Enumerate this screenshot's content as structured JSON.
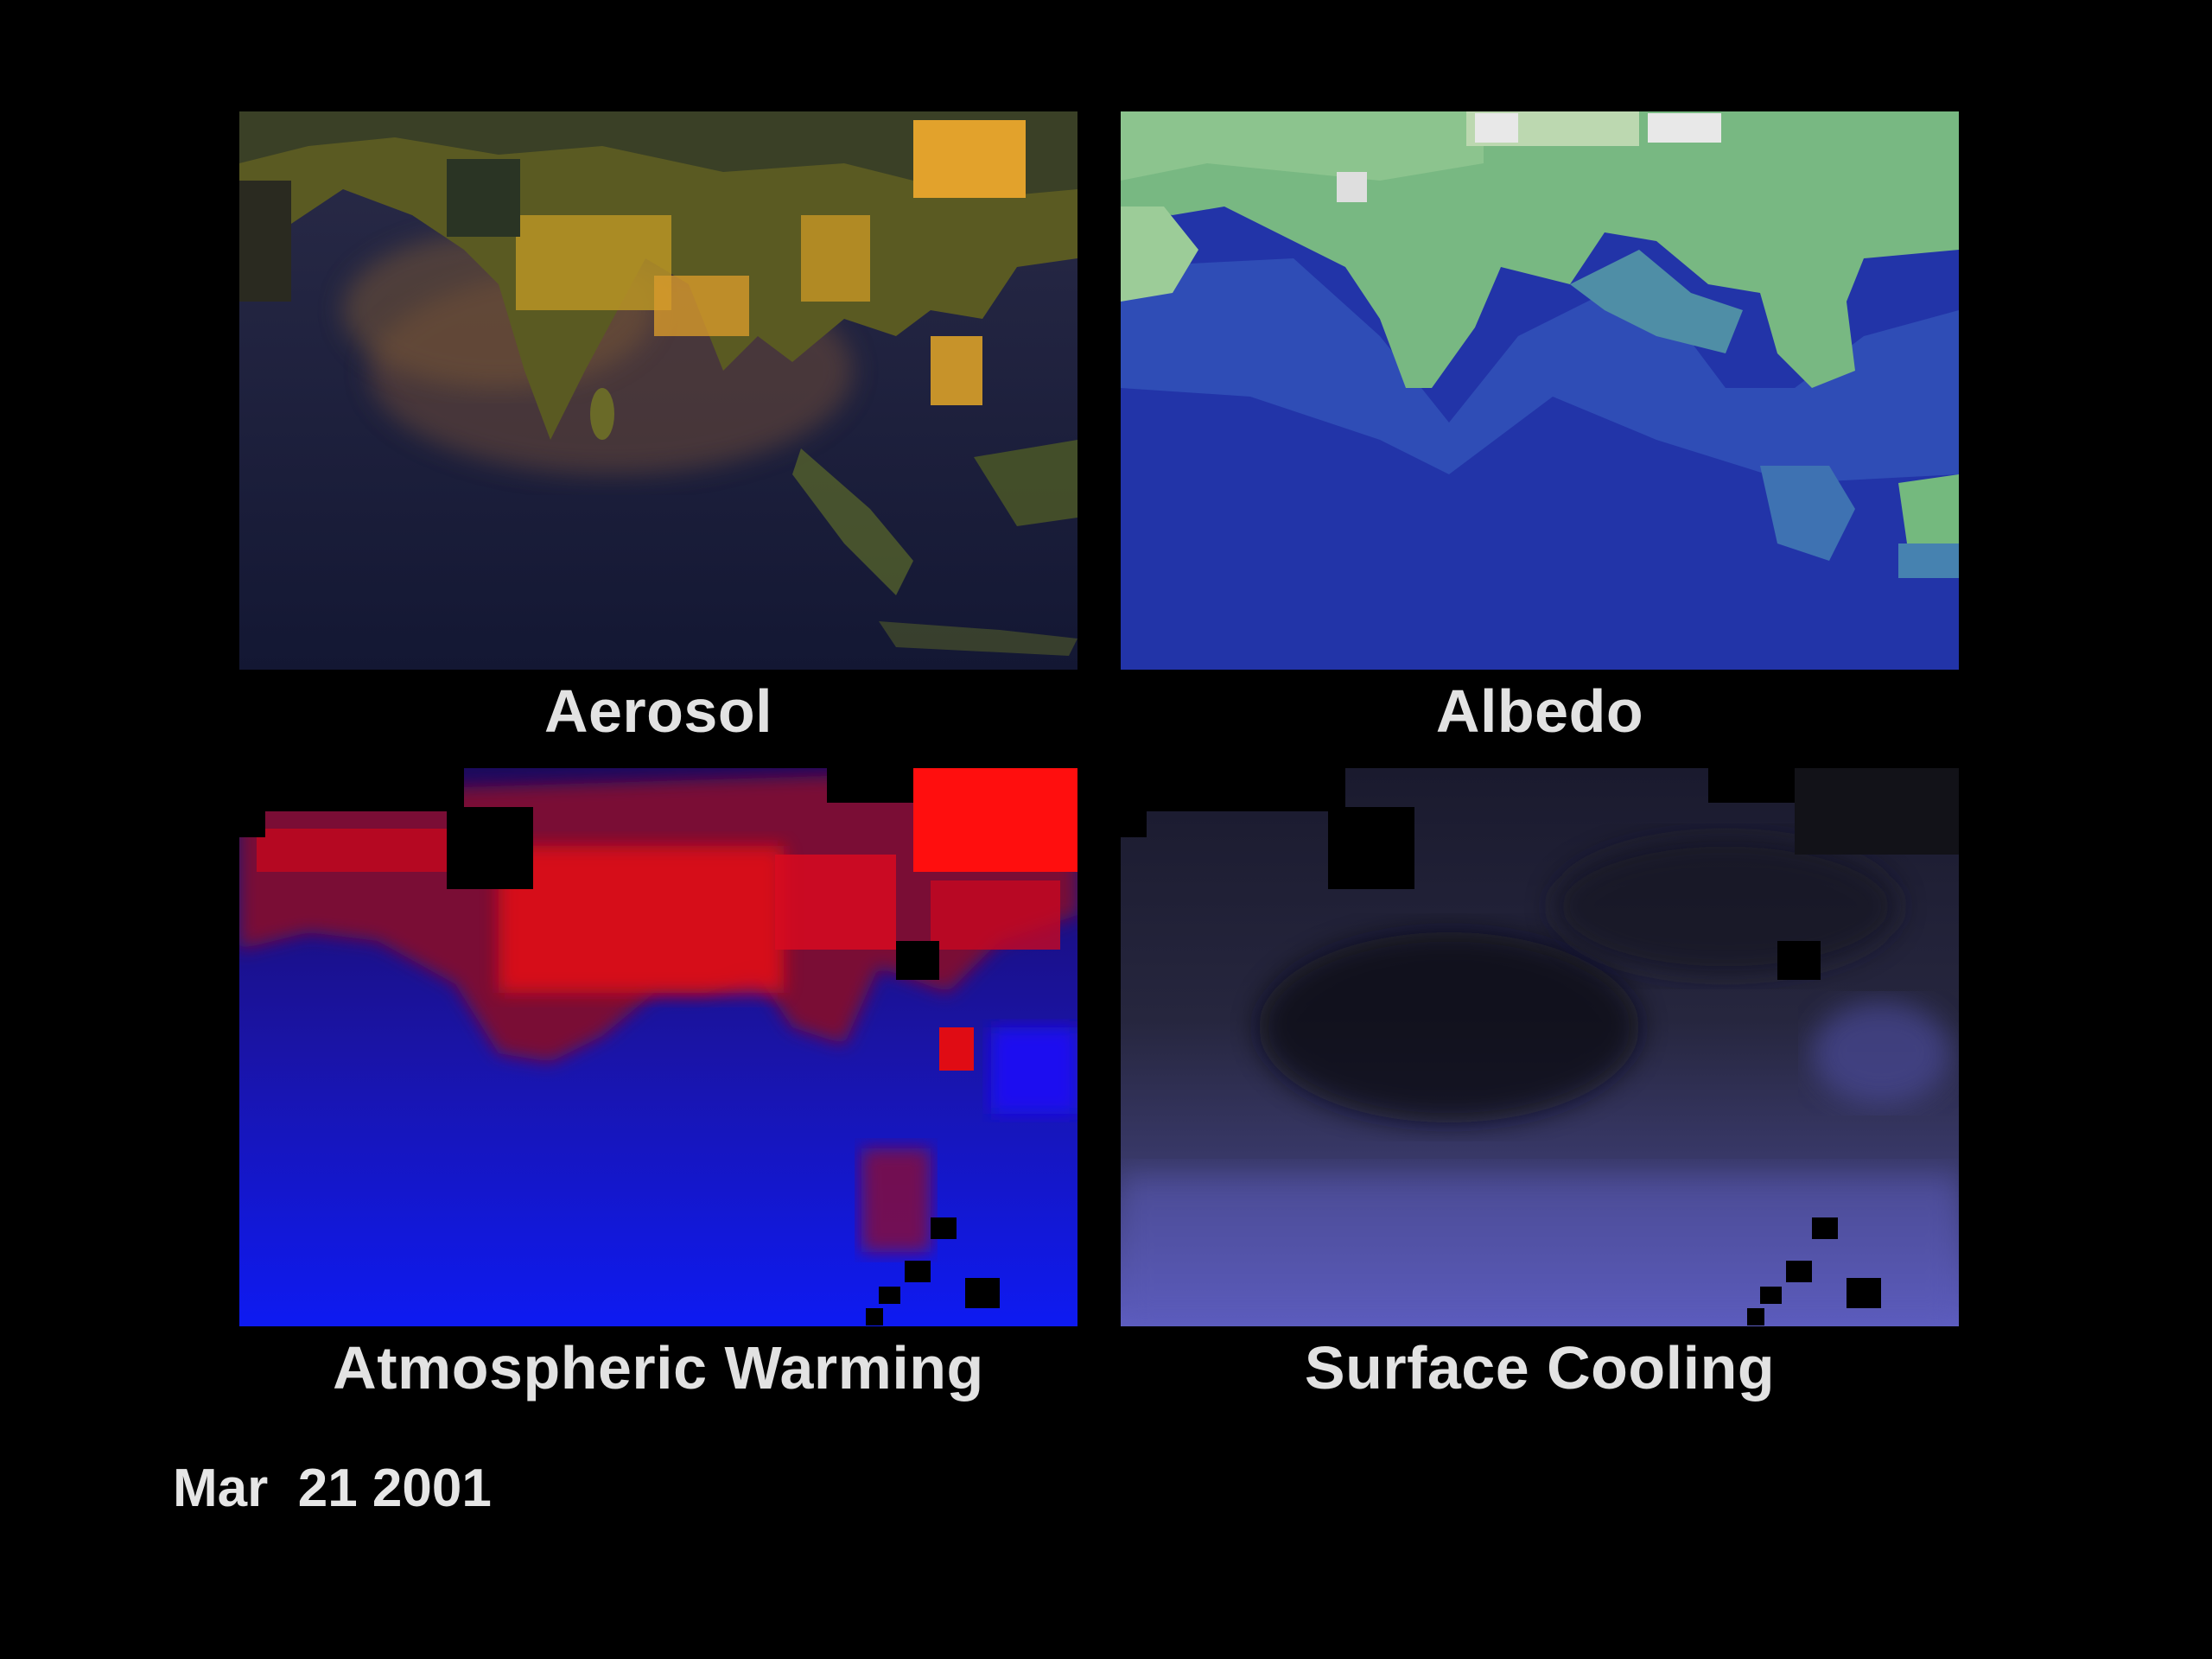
{
  "panels": [
    {
      "key": "aerosol",
      "caption": "Aerosol",
      "palette": [
        "#161c3c",
        "#3a3550",
        "#a07a2c",
        "#e0a12a"
      ]
    },
    {
      "key": "albedo",
      "caption": "Albedo",
      "palette": [
        "#2233aa",
        "#3a63b8",
        "#7fbf80",
        "#e6e6e6"
      ]
    },
    {
      "key": "warming",
      "caption": "Atmospheric Warming",
      "palette": [
        "#0a12ee",
        "#3a0a70",
        "#b00010",
        "#ff1010"
      ]
    },
    {
      "key": "cooling",
      "caption": "Surface Cooling",
      "palette": [
        "#0c0c18",
        "#252540",
        "#4c4c8c",
        "#6a6ad0"
      ]
    }
  ],
  "timestamp": "Mar  21 2001",
  "background_color": "#000000",
  "caption_color": "#e2e2e2"
}
